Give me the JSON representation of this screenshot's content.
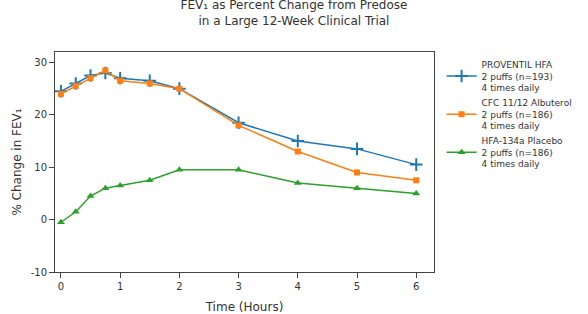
{
  "chart_data": {
    "type": "line",
    "title": "FEV₁ as Percent Change from Predose\nin a Large 12-Week Clinical Trial",
    "xlabel": "Time (Hours)",
    "ylabel": "% Change in FEV₁",
    "xlim": [
      -0.1,
      6.3
    ],
    "ylim": [
      -10,
      32
    ],
    "xticks": [
      0,
      1,
      2,
      3,
      4,
      5,
      6
    ],
    "yticks": [
      -10,
      0,
      10,
      20,
      30
    ],
    "grid": false,
    "legend": "right",
    "x": [
      0.0,
      0.25,
      0.5,
      0.75,
      1.0,
      1.5,
      2.0,
      3.0,
      4.0,
      5.0,
      6.0
    ],
    "series": [
      {
        "name": "PROVENTIL HFA\n2 puffs (n=193)\n4 times daily",
        "marker": "plus",
        "values": [
          24.5,
          26.0,
          27.5,
          28.0,
          27.0,
          26.5,
          25.0,
          18.5,
          15.0,
          13.5,
          10.5
        ]
      },
      {
        "name": "CFC 11/12 Albuterol\n2 puffs (n=186)\n4 times daily",
        "marker": "square",
        "values": [
          24.0,
          25.5,
          27.0,
          28.5,
          26.5,
          26.0,
          25.0,
          18.0,
          13.0,
          9.0,
          7.5
        ]
      },
      {
        "name": "HFA-134a Placebo\n2 puffs (n=186)\n4 times daily",
        "marker": "triangle",
        "values": [
          -0.5,
          1.5,
          4.5,
          6.0,
          6.5,
          7.5,
          9.5,
          9.5,
          7.0,
          6.0,
          5.0
        ]
      }
    ]
  }
}
